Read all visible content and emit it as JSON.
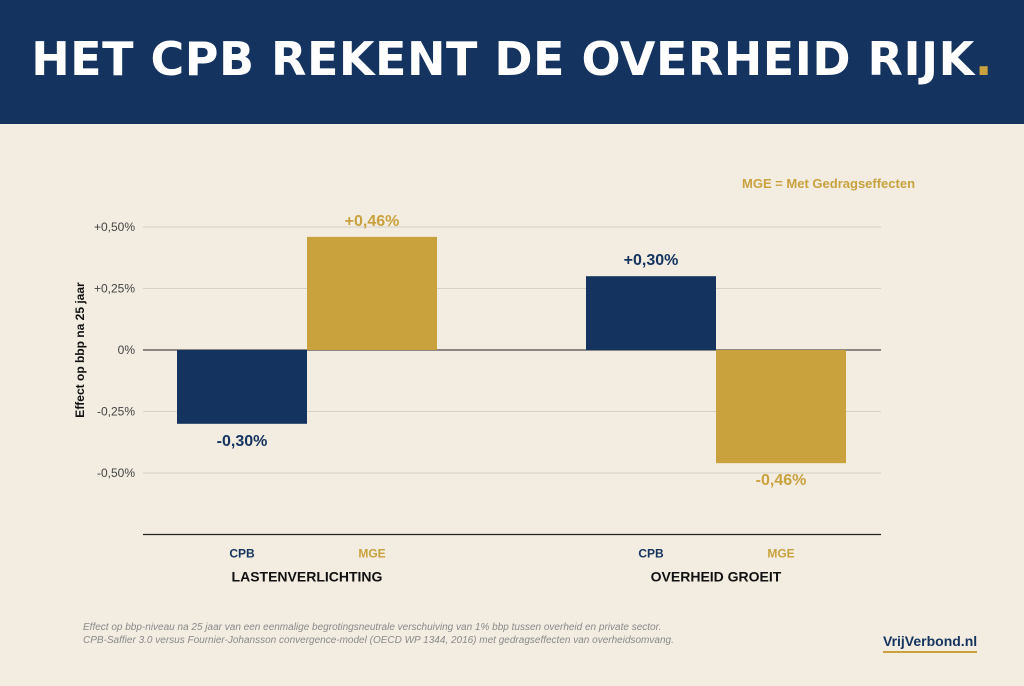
{
  "header": {
    "title": "HET CPB REKENT DE OVERHEID RIJK",
    "title_dot": "."
  },
  "legend_note": "MGE = Met Gedragseffecten",
  "footnote": {
    "line1": "Effect op bbp-niveau na 25 jaar van een eenmalige begrotingsneutrale verschuiving van 1% bbp tussen overheid en private sector.",
    "line2": "CPB-Saffier 3.0 versus Fournier-Johansson convergence-model (OECD WP 1344, 2016) met gedragseffecten van overheidsomvang."
  },
  "brand": "VrijVerbond.nl",
  "colors": {
    "navy": "#14335f",
    "gold": "#c9a23e",
    "background": "#f2ece1"
  },
  "chart_data": {
    "type": "bar",
    "ylabel": "Effect op bbp na 25 jaar",
    "ylim": [
      -0.75,
      0.5
    ],
    "yticks": [
      {
        "value": 0.5,
        "label": "+0,50%"
      },
      {
        "value": 0.25,
        "label": "+0,25%"
      },
      {
        "value": 0,
        "label": "0%"
      },
      {
        "value": -0.25,
        "label": "-0,25%"
      },
      {
        "value": -0.5,
        "label": "-0,50%"
      }
    ],
    "grid": true,
    "groups": [
      {
        "label": "LASTENVERLICHTING",
        "bars": [
          {
            "label": "CPB",
            "value": -0.3,
            "value_label": "-0,30%",
            "color": "#14335f"
          },
          {
            "label": "MGE",
            "value": 0.46,
            "value_label": "+0,46%",
            "color": "#c9a23e"
          }
        ]
      },
      {
        "label": "OVERHEID GROEIT",
        "bars": [
          {
            "label": "CPB",
            "value": 0.3,
            "value_label": "+0,30%",
            "color": "#14335f"
          },
          {
            "label": "MGE",
            "value": -0.46,
            "value_label": "-0,46%",
            "color": "#c9a23e"
          }
        ]
      }
    ]
  }
}
